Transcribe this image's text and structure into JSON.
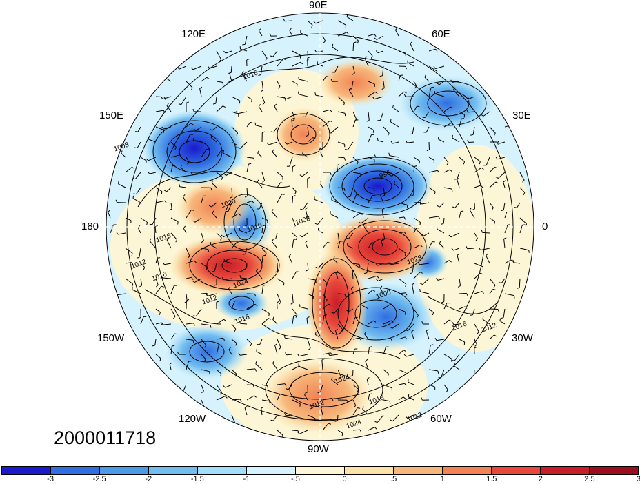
{
  "map": {
    "longitude_labels": {
      "lon_90e": "90E",
      "lon_120e": "120E",
      "lon_60e": "60E",
      "lon_150e": "150E",
      "lon_30e": "30E",
      "lon_180": "180",
      "lon_0": "0",
      "lon_150w": "150W",
      "lon_30w": "30W",
      "lon_120w": "120W",
      "lon_60w": "60W",
      "lon_90w": "90W"
    },
    "date_stamp": "2000011718",
    "contour_labels": [
      "1016",
      "1008",
      "1016",
      "1012",
      "1016",
      "1020",
      "1024",
      "1012",
      "1016",
      "1024",
      "1028",
      "1016",
      "1000",
      "996",
      "1016",
      "1012",
      "1012",
      "1024",
      "1012",
      "1016",
      "1008"
    ]
  },
  "colorbar": {
    "colors": [
      "#1a1acc",
      "#2f6fe0",
      "#4d9ae8",
      "#72bdf0",
      "#a2defa",
      "#d6f2fc",
      "#fdf6d6",
      "#fbe3a8",
      "#f7b77a",
      "#f28355",
      "#e8483a",
      "#c81e2a",
      "#9a0e1e"
    ],
    "tick_labels": [
      "-3",
      "-2.5",
      "-2",
      "-1.5",
      "-1",
      "-.5",
      "0",
      ".5",
      "1",
      "1.5",
      "2",
      "2.5",
      "3"
    ]
  }
}
